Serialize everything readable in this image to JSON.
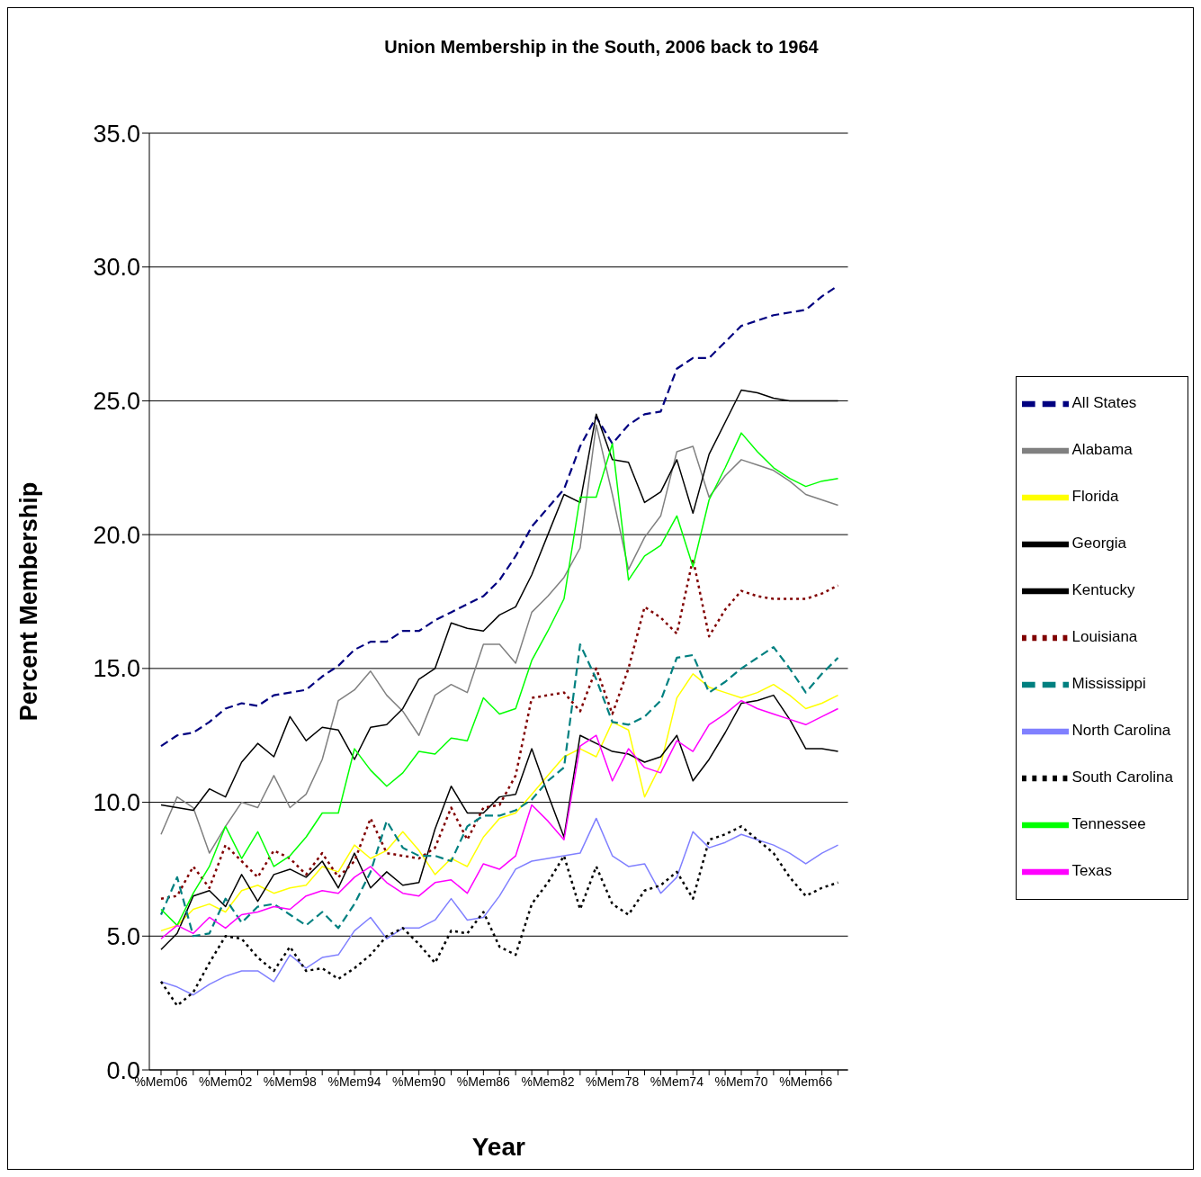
{
  "chart_data": {
    "type": "line",
    "title": "Union Membership in the South, 2006 back to 1964",
    "xlabel": "Year",
    "ylabel": "Percent Membership",
    "categories": [
      "%Mem06",
      null,
      null,
      null,
      "%Mem02",
      null,
      null,
      null,
      "%Mem98",
      null,
      null,
      null,
      "%Mem94",
      null,
      null,
      null,
      "%Mem90",
      null,
      null,
      null,
      "%Mem86",
      null,
      null,
      null,
      "%Mem82",
      null,
      null,
      null,
      "%Mem78",
      null,
      null,
      null,
      "%Mem74",
      null,
      null,
      null,
      "%Mem70",
      null,
      null,
      null,
      "%Mem66",
      null,
      null
    ],
    "ylim": [
      0,
      35
    ],
    "yticks": [
      {
        "value": 0,
        "label": "0.0"
      },
      {
        "value": 5,
        "label": "5.0"
      },
      {
        "value": 10,
        "label": "10.0"
      },
      {
        "value": 15,
        "label": "15.0"
      },
      {
        "value": 20,
        "label": "20.0"
      },
      {
        "value": 25,
        "label": "25.0"
      },
      {
        "value": 30,
        "label": "30.0"
      },
      {
        "value": 35,
        "label": "35.0"
      }
    ],
    "grid": "y",
    "legend": "right",
    "marker": "none",
    "series": [
      {
        "name": "All States",
        "color": "#000080",
        "line_style": "dashed",
        "values": [
          12.1,
          12.5,
          12.6,
          13.0,
          13.5,
          13.7,
          13.6,
          14.0,
          14.1,
          14.2,
          14.7,
          15.1,
          15.7,
          16.0,
          16.0,
          16.4,
          16.4,
          16.8,
          17.1,
          17.4,
          17.7,
          18.3,
          19.2,
          20.3,
          21.0,
          21.7,
          23.3,
          24.4,
          23.4,
          24.1,
          24.5,
          24.6,
          26.2,
          26.6,
          26.6,
          27.2,
          27.8,
          28.0,
          28.2,
          28.3,
          28.4,
          28.9,
          29.3
        ]
      },
      {
        "name": "Alabama",
        "color": "#808080",
        "line_style": "solid",
        "values": [
          8.8,
          10.2,
          9.8,
          8.1,
          9.1,
          10.0,
          9.8,
          11.0,
          9.8,
          10.3,
          11.6,
          13.8,
          14.2,
          14.9,
          14.0,
          13.4,
          12.5,
          14.0,
          14.4,
          14.1,
          15.9,
          15.9,
          15.2,
          17.1,
          17.7,
          18.4,
          19.5,
          24.1,
          21.5,
          18.7,
          19.9,
          20.7,
          23.1,
          23.3,
          21.4,
          22.2,
          22.8,
          22.6,
          22.4,
          22.0,
          21.5,
          21.3,
          21.1
        ]
      },
      {
        "name": "Florida",
        "color": "#ffff00",
        "line_style": "solid",
        "values": [
          5.2,
          5.4,
          6.0,
          6.2,
          5.9,
          6.7,
          6.9,
          6.6,
          6.8,
          6.9,
          7.6,
          7.4,
          8.4,
          7.9,
          8.2,
          8.9,
          8.2,
          7.3,
          7.9,
          7.6,
          8.7,
          9.4,
          9.6,
          10.3,
          11.0,
          11.7,
          12.0,
          11.7,
          13.0,
          12.7,
          10.2,
          11.4,
          13.9,
          14.8,
          14.3,
          14.1,
          13.9,
          14.1,
          14.4,
          14.0,
          13.5,
          13.7,
          14.0
        ]
      },
      {
        "name": "Georgia",
        "color": "#000000",
        "line_style": "solid",
        "values": [
          4.5,
          5.1,
          6.5,
          6.7,
          6.1,
          7.3,
          6.3,
          7.3,
          7.5,
          7.2,
          7.8,
          6.8,
          8.1,
          6.8,
          7.4,
          6.9,
          7.0,
          9.0,
          10.6,
          9.6,
          9.6,
          10.2,
          10.3,
          12.0,
          10.3,
          8.7,
          12.5,
          12.2,
          11.9,
          11.8,
          11.5,
          11.7,
          12.5,
          10.8,
          11.6,
          12.6,
          13.7,
          13.8,
          14.0,
          13.1,
          12.0,
          12.0,
          11.9
        ]
      },
      {
        "name": "Kentucky",
        "color": "#000000",
        "line_style": "solid",
        "values": [
          9.9,
          9.8,
          9.7,
          10.5,
          10.2,
          11.5,
          12.2,
          11.7,
          13.2,
          12.3,
          12.8,
          12.7,
          11.6,
          12.8,
          12.9,
          13.5,
          14.6,
          15.0,
          16.7,
          16.5,
          16.4,
          17.0,
          17.3,
          18.5,
          20.0,
          21.5,
          21.2,
          24.5,
          22.8,
          22.7,
          21.2,
          21.6,
          22.8,
          20.8,
          23.0,
          24.2,
          25.4,
          25.3,
          25.1,
          25.0,
          25.0,
          25.0,
          25.0
        ]
      },
      {
        "name": "Louisiana",
        "color": "#800000",
        "line_style": "dotted",
        "values": [
          6.4,
          6.5,
          7.6,
          6.8,
          8.4,
          7.8,
          7.2,
          8.2,
          7.9,
          7.3,
          8.1,
          7.2,
          7.8,
          9.4,
          8.1,
          8.0,
          7.9,
          8.3,
          9.8,
          8.6,
          9.8,
          9.9,
          11.0,
          13.9,
          14.0,
          14.1,
          13.4,
          15.0,
          13.3,
          15.0,
          17.3,
          16.9,
          16.3,
          19.1,
          16.2,
          17.2,
          17.9,
          17.7,
          17.6,
          17.6,
          17.6,
          17.8,
          18.1
        ]
      },
      {
        "name": "Mississippi",
        "color": "#008080",
        "line_style": "dashed",
        "values": [
          5.8,
          7.2,
          5.0,
          5.1,
          6.4,
          5.5,
          6.1,
          6.2,
          5.8,
          5.4,
          5.9,
          5.3,
          6.2,
          7.4,
          9.3,
          8.3,
          8.0,
          8.0,
          7.8,
          9.1,
          9.5,
          9.5,
          9.7,
          10.1,
          10.8,
          11.3,
          15.9,
          14.6,
          13.0,
          12.9,
          13.2,
          13.8,
          15.4,
          15.5,
          14.1,
          14.5,
          15.0,
          15.4,
          15.8,
          15.0,
          14.1,
          14.8,
          15.4
        ]
      },
      {
        "name": "North Carolina",
        "color": "#8080ff",
        "line_style": "solid",
        "values": [
          3.3,
          3.1,
          2.8,
          3.2,
          3.5,
          3.7,
          3.7,
          3.3,
          4.3,
          3.8,
          4.2,
          4.3,
          5.2,
          5.7,
          4.9,
          5.3,
          5.3,
          5.6,
          6.4,
          5.6,
          5.7,
          6.5,
          7.5,
          7.8,
          7.9,
          8.0,
          8.1,
          9.4,
          8.0,
          7.6,
          7.7,
          6.6,
          7.2,
          8.9,
          8.3,
          8.5,
          8.8,
          8.6,
          8.4,
          8.1,
          7.7,
          8.1,
          8.4
        ]
      },
      {
        "name": "South Carolina",
        "color": "#000000",
        "line_style": "dotted",
        "values": [
          3.3,
          2.4,
          2.9,
          4.0,
          5.0,
          4.9,
          4.2,
          3.7,
          4.6,
          3.7,
          3.8,
          3.4,
          3.8,
          4.3,
          5.0,
          5.3,
          4.7,
          4.0,
          5.2,
          5.1,
          5.9,
          4.6,
          4.3,
          6.2,
          7.0,
          8.0,
          6.0,
          7.6,
          6.2,
          5.8,
          6.7,
          6.9,
          7.4,
          6.4,
          8.6,
          8.8,
          9.1,
          8.6,
          8.1,
          7.2,
          6.5,
          6.8,
          7.0
        ]
      },
      {
        "name": "Tennessee",
        "color": "#00ff00",
        "line_style": "solid",
        "values": [
          6.0,
          5.4,
          6.6,
          7.6,
          9.1,
          7.9,
          8.9,
          7.6,
          8.0,
          8.7,
          9.6,
          9.6,
          12.0,
          11.2,
          10.6,
          11.1,
          11.9,
          11.8,
          12.4,
          12.3,
          13.9,
          13.3,
          13.5,
          15.3,
          16.4,
          17.6,
          21.4,
          21.4,
          23.4,
          18.3,
          19.2,
          19.6,
          20.7,
          18.8,
          21.3,
          22.5,
          23.8,
          23.1,
          22.5,
          22.1,
          21.8,
          22.0,
          22.1
        ]
      },
      {
        "name": "Texas",
        "color": "#ff00ff",
        "line_style": "solid",
        "values": [
          4.9,
          5.4,
          5.1,
          5.7,
          5.3,
          5.8,
          5.9,
          6.1,
          6.0,
          6.5,
          6.7,
          6.6,
          7.2,
          7.6,
          7.0,
          6.6,
          6.5,
          7.0,
          7.1,
          6.6,
          7.7,
          7.5,
          8.0,
          9.9,
          9.3,
          8.6,
          12.1,
          12.5,
          10.8,
          12.0,
          11.3,
          11.1,
          12.3,
          11.9,
          12.9,
          13.3,
          13.8,
          13.5,
          13.3,
          13.1,
          12.9,
          13.2,
          13.5
        ]
      }
    ]
  }
}
